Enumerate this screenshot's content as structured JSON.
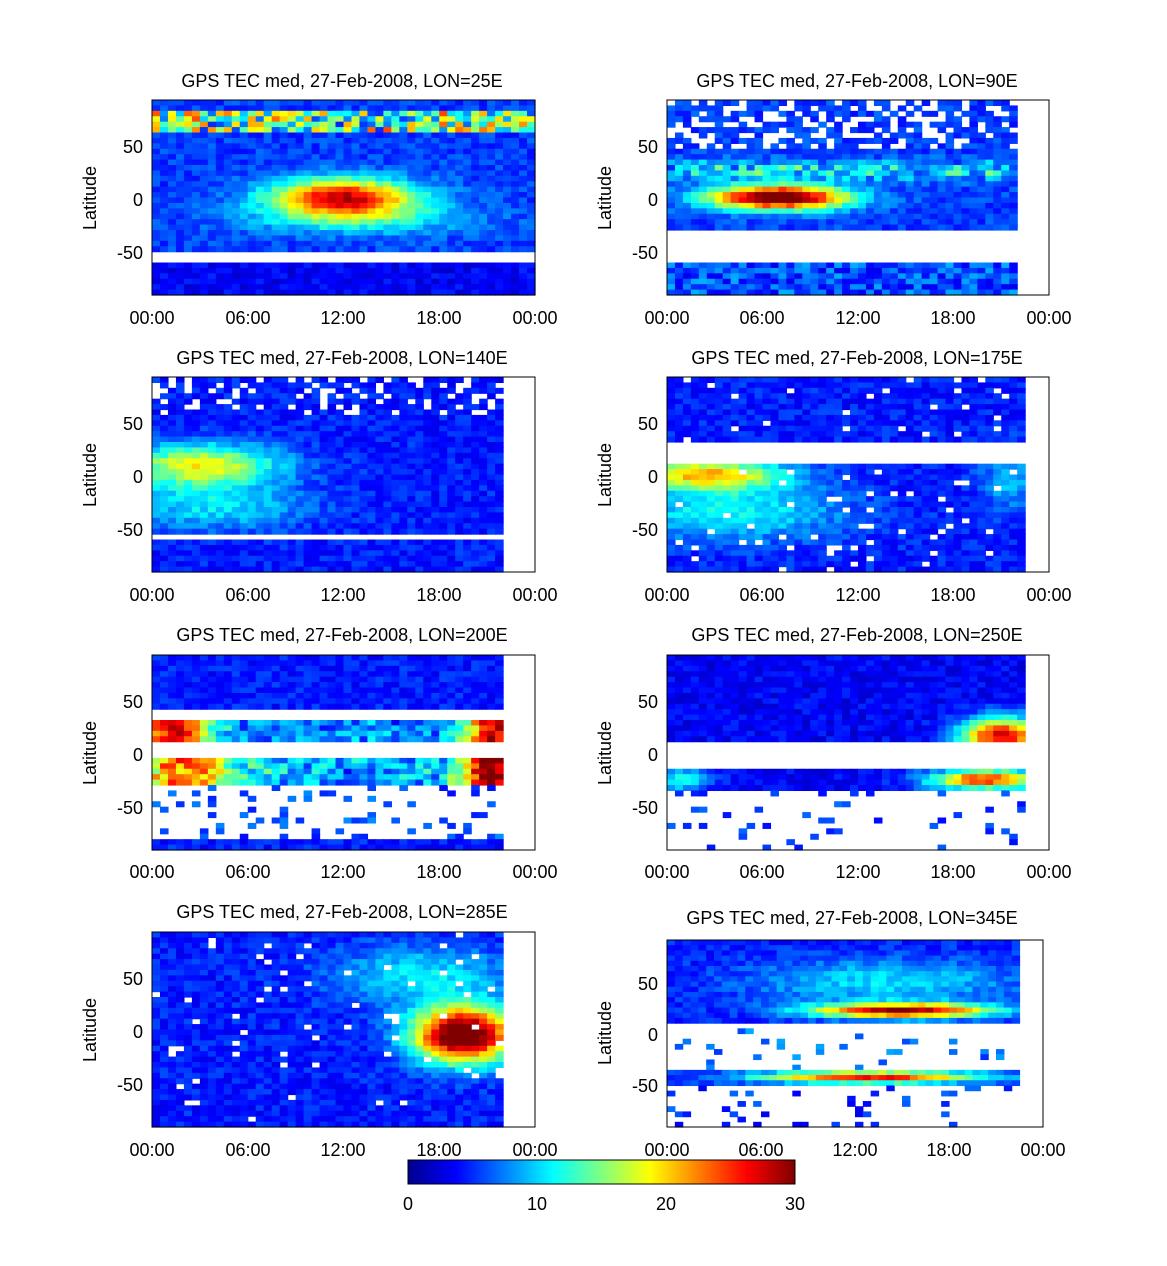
{
  "colors": {
    "background": "#ffffff",
    "axis": "#000000",
    "colormap": [
      "#00008f",
      "#0000ff",
      "#0080ff",
      "#00ffff",
      "#80ff80",
      "#ffff00",
      "#ff8000",
      "#ff0000",
      "#800000"
    ]
  },
  "chart_data": [
    {
      "type": "heatmap",
      "title": "GPS TEC med, 27-Feb-2008, LON=25E",
      "ylabel": "Latitude",
      "xticks": [
        "00:00",
        "06:00",
        "12:00",
        "18:00",
        "00:00"
      ],
      "yticks": [
        "50",
        "0",
        "-50"
      ],
      "ylim": [
        -90,
        90
      ],
      "pattern": "lon25"
    },
    {
      "type": "heatmap",
      "title": "GPS TEC med, 27-Feb-2008, LON=90E",
      "ylabel": "Latitude",
      "xticks": [
        "00:00",
        "06:00",
        "12:00",
        "18:00",
        "00:00"
      ],
      "yticks": [
        "50",
        "0",
        "-50"
      ],
      "ylim": [
        -90,
        90
      ],
      "pattern": "lon90"
    },
    {
      "type": "heatmap",
      "title": "GPS TEC med, 27-Feb-2008, LON=140E",
      "ylabel": "Latitude",
      "xticks": [
        "00:00",
        "06:00",
        "12:00",
        "18:00",
        "00:00"
      ],
      "yticks": [
        "50",
        "0",
        "-50"
      ],
      "ylim": [
        -90,
        90
      ],
      "pattern": "lon140"
    },
    {
      "type": "heatmap",
      "title": "GPS TEC med, 27-Feb-2008, LON=175E",
      "ylabel": "Latitude",
      "xticks": [
        "00:00",
        "06:00",
        "12:00",
        "18:00",
        "00:00"
      ],
      "yticks": [
        "50",
        "0",
        "-50"
      ],
      "ylim": [
        -90,
        90
      ],
      "pattern": "lon175"
    },
    {
      "type": "heatmap",
      "title": "GPS TEC med, 27-Feb-2008, LON=200E",
      "ylabel": "Latitude",
      "xticks": [
        "00:00",
        "06:00",
        "12:00",
        "18:00",
        "00:00"
      ],
      "yticks": [
        "50",
        "0",
        "-50"
      ],
      "ylim": [
        -90,
        90
      ],
      "pattern": "lon200"
    },
    {
      "type": "heatmap",
      "title": "GPS TEC med, 27-Feb-2008, LON=250E",
      "ylabel": "Latitude",
      "xticks": [
        "00:00",
        "06:00",
        "12:00",
        "18:00",
        "00:00"
      ],
      "yticks": [
        "50",
        "0",
        "-50"
      ],
      "ylim": [
        -90,
        90
      ],
      "pattern": "lon250"
    },
    {
      "type": "heatmap",
      "title": "GPS TEC med, 27-Feb-2008, LON=285E",
      "ylabel": "Latitude",
      "xticks": [
        "00:00",
        "06:00",
        "12:00",
        "18:00",
        "00:00"
      ],
      "yticks": [
        "50",
        "0",
        "-50"
      ],
      "ylim": [
        -90,
        90
      ],
      "pattern": "lon285"
    },
    {
      "type": "heatmap",
      "title": "GPS TEC med, 27-Feb-2008, LON=345E",
      "ylabel": "Latitude",
      "xticks": [
        "00:00",
        "06:00",
        "12:00",
        "18:00",
        "00:00"
      ],
      "yticks": [
        "50",
        "0",
        "-50"
      ],
      "ylim": [
        -90,
        90
      ],
      "pattern": "lon345"
    }
  ],
  "colorbar": {
    "min": 0,
    "max": 30,
    "ticks": [
      "0",
      "10",
      "20",
      "30"
    ]
  }
}
